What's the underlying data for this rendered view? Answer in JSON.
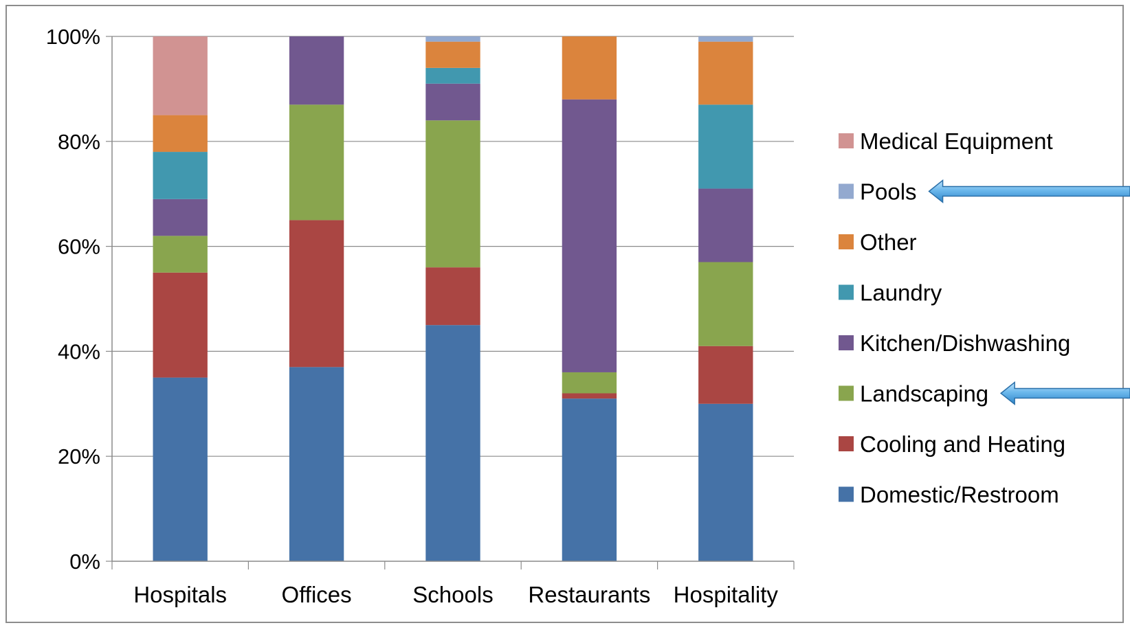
{
  "chart_data": {
    "type": "bar",
    "stacked": true,
    "percent": true,
    "categories": [
      "Hospitals",
      "Offices",
      "Schools",
      "Restaurants",
      "Hospitality"
    ],
    "series": [
      {
        "name": "Domestic/Restroom",
        "color": "#4572A7",
        "values": [
          35,
          37,
          45,
          31,
          30
        ]
      },
      {
        "name": "Cooling and Heating",
        "color": "#AA4643",
        "values": [
          20,
          28,
          11,
          1,
          11
        ]
      },
      {
        "name": "Landscaping",
        "color": "#89A54E",
        "values": [
          7,
          22,
          28,
          4,
          16
        ]
      },
      {
        "name": "Kitchen/Dishwashing",
        "color": "#71588F",
        "values": [
          7,
          13,
          7,
          52,
          14
        ]
      },
      {
        "name": "Laundry",
        "color": "#4198AF",
        "values": [
          9,
          0,
          3,
          0,
          16
        ]
      },
      {
        "name": "Other",
        "color": "#DB843D",
        "values": [
          7,
          0,
          5,
          12,
          12
        ]
      },
      {
        "name": "Pools",
        "color": "#93A9CF",
        "values": [
          0,
          0,
          1,
          0,
          1
        ]
      },
      {
        "name": "Medical Equipment",
        "color": "#D19392",
        "values": [
          15,
          0,
          0,
          0,
          0
        ]
      }
    ],
    "ylim": [
      0,
      100
    ],
    "yticks": [
      "0%",
      "20%",
      "40%",
      "60%",
      "80%",
      "100%"
    ],
    "grid": true,
    "legend_position": "right",
    "legend_order": [
      "Medical Equipment",
      "Pools",
      "Other",
      "Laundry",
      "Kitchen/Dishwashing",
      "Landscaping",
      "Cooling and Heating",
      "Domestic/Restroom"
    ],
    "highlighted_legend_entries": [
      "Pools",
      "Landscaping"
    ],
    "annotation_color": "#4A9FD6"
  }
}
